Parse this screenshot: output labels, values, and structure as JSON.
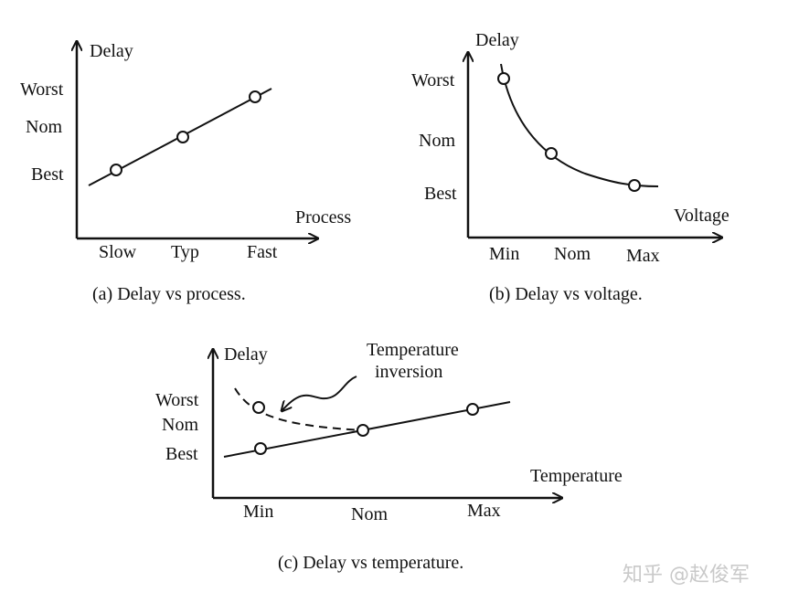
{
  "panel_a": {
    "y_axis": "Delay",
    "x_axis": "Process",
    "y_ticks": [
      "Worst",
      "Nom",
      "Best"
    ],
    "x_ticks": [
      "Slow",
      "Typ",
      "Fast"
    ],
    "caption": "(a) Delay vs process."
  },
  "panel_b": {
    "y_axis": "Delay",
    "x_axis": "Voltage",
    "y_ticks": [
      "Worst",
      "Nom",
      "Best"
    ],
    "x_ticks": [
      "Min",
      "Nom",
      "Max"
    ],
    "caption": "(b) Delay vs voltage."
  },
  "panel_c": {
    "y_axis": "Delay",
    "x_axis": "Temperature",
    "y_ticks": [
      "Worst",
      "Nom",
      "Best"
    ],
    "x_ticks": [
      "Min",
      "Nom",
      "Max"
    ],
    "annotation": [
      "Temperature",
      "inversion"
    ],
    "caption": "(c) Delay vs temperature."
  },
  "watermark": "知乎 @赵俊军"
}
